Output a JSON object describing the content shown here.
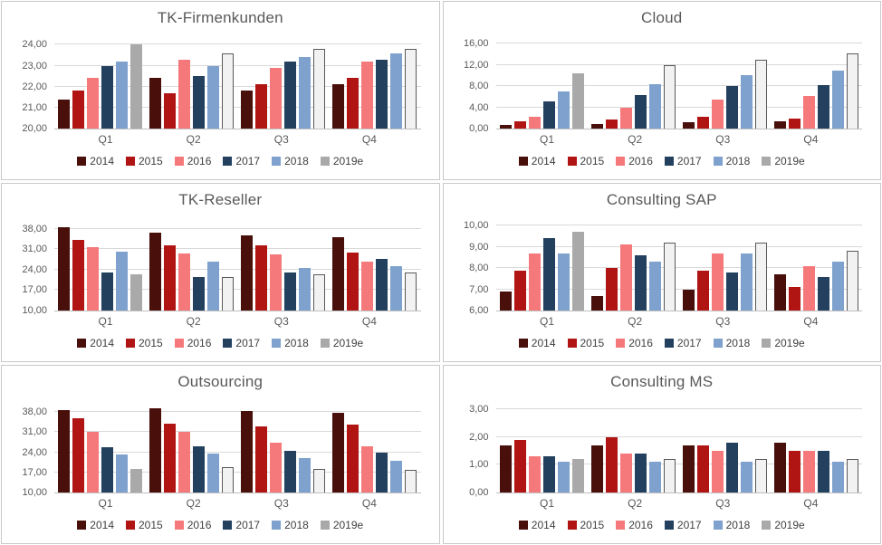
{
  "dashboard": {
    "colors": {
      "background": "#ffffff",
      "panel_border": "#c9c9c9",
      "gridline": "#d9d9d9",
      "axis_line": "#bfbfbf",
      "title_text": "#595959",
      "tick_text": "#595959",
      "legend_text": "#404040"
    },
    "legend": {
      "position": "bottom",
      "entries": [
        {
          "label": "2014",
          "color": "#480f0b"
        },
        {
          "label": "2015",
          "color": "#b01513"
        },
        {
          "label": "2016",
          "color": "#f5797b"
        },
        {
          "label": "2017",
          "color": "#23405f"
        },
        {
          "label": "2018",
          "color": "#7ea1cd"
        },
        {
          "label": "2019e",
          "color": "#a9a9a9",
          "estimate_fill": "#f2f2f2",
          "estimate_border": "#595959",
          "estimate_from_index": 1
        }
      ]
    }
  },
  "chart_data": [
    {
      "type": "bar",
      "title": "TK-Firmenkunden",
      "categories": [
        "Q1",
        "Q2",
        "Q3",
        "Q4"
      ],
      "grid": true,
      "legend_position": "bottom",
      "ylim": [
        20,
        24.45
      ],
      "y_ticks": [
        {
          "v": 20,
          "label": "20,00"
        },
        {
          "v": 21,
          "label": "21,00"
        },
        {
          "v": 22,
          "label": "22,00"
        },
        {
          "v": 23,
          "label": "23,00"
        },
        {
          "v": 24,
          "label": "24,00"
        }
      ],
      "series": [
        {
          "name": "2014",
          "values": [
            21.4,
            22.4,
            21.8,
            22.1
          ]
        },
        {
          "name": "2015",
          "values": [
            21.8,
            21.7,
            22.1,
            22.4
          ]
        },
        {
          "name": "2016",
          "values": [
            22.4,
            23.3,
            22.9,
            23.2
          ]
        },
        {
          "name": "2017",
          "values": [
            23.0,
            22.5,
            23.2,
            23.3
          ]
        },
        {
          "name": "2018",
          "values": [
            23.2,
            23.0,
            23.4,
            23.6
          ]
        },
        {
          "name": "2019e",
          "values": [
            24.0,
            23.6,
            23.8,
            23.8
          ]
        }
      ]
    },
    {
      "type": "bar",
      "title": "Cloud",
      "categories": [
        "Q1",
        "Q2",
        "Q3",
        "Q4"
      ],
      "grid": true,
      "legend_position": "bottom",
      "ylim": [
        0,
        17.6
      ],
      "y_ticks": [
        {
          "v": 0,
          "label": "0,00"
        },
        {
          "v": 4,
          "label": "4,00"
        },
        {
          "v": 8,
          "label": "8,00"
        },
        {
          "v": 12,
          "label": "12,00"
        },
        {
          "v": 16,
          "label": "16,00"
        }
      ],
      "series": [
        {
          "name": "2014",
          "values": [
            0.7,
            0.8,
            1.2,
            1.4
          ]
        },
        {
          "name": "2015",
          "values": [
            1.3,
            1.7,
            2.3,
            1.9
          ]
        },
        {
          "name": "2016",
          "values": [
            2.3,
            4.0,
            5.5,
            6.1
          ]
        },
        {
          "name": "2017",
          "values": [
            5.1,
            6.3,
            8.0,
            8.2
          ]
        },
        {
          "name": "2018",
          "values": [
            7.0,
            8.4,
            10.0,
            10.9
          ]
        },
        {
          "name": "2019e",
          "values": [
            10.5,
            12.0,
            13.0,
            14.1
          ]
        }
      ]
    },
    {
      "type": "bar",
      "title": "TK-Reseller",
      "categories": [
        "Q1",
        "Q2",
        "Q3",
        "Q4"
      ],
      "grid": true,
      "legend_position": "bottom",
      "ylim": [
        10,
        42
      ],
      "y_ticks": [
        {
          "v": 10,
          "label": "10,00"
        },
        {
          "v": 17,
          "label": "17,00"
        },
        {
          "v": 24,
          "label": "24,00"
        },
        {
          "v": 31,
          "label": "31,00"
        },
        {
          "v": 38,
          "label": "38,00"
        }
      ],
      "series": [
        {
          "name": "2014",
          "values": [
            38.5,
            36.8,
            35.9,
            35.1
          ]
        },
        {
          "name": "2015",
          "values": [
            34.3,
            32.3,
            32.4,
            29.8
          ]
        },
        {
          "name": "2016",
          "values": [
            31.8,
            29.5,
            29.3,
            26.9
          ]
        },
        {
          "name": "2017",
          "values": [
            23.1,
            21.4,
            23.1,
            27.8
          ]
        },
        {
          "name": "2018",
          "values": [
            30.1,
            26.9,
            24.5,
            25.2
          ]
        },
        {
          "name": "2019e",
          "values": [
            22.5,
            21.6,
            22.3,
            23.2
          ]
        }
      ]
    },
    {
      "type": "bar",
      "title": "Consulting SAP",
      "categories": [
        "Q1",
        "Q2",
        "Q3",
        "Q4"
      ],
      "grid": true,
      "legend_position": "bottom",
      "ylim": [
        6,
        10.4
      ],
      "y_ticks": [
        {
          "v": 6,
          "label": "6,00"
        },
        {
          "v": 7,
          "label": "7,00"
        },
        {
          "v": 8,
          "label": "8,00"
        },
        {
          "v": 9,
          "label": "9,00"
        },
        {
          "v": 10,
          "label": "10,00"
        }
      ],
      "series": [
        {
          "name": "2014",
          "values": [
            6.9,
            6.7,
            7.0,
            7.7
          ]
        },
        {
          "name": "2015",
          "values": [
            7.9,
            8.0,
            7.9,
            7.1
          ]
        },
        {
          "name": "2016",
          "values": [
            8.7,
            9.1,
            8.7,
            8.1
          ]
        },
        {
          "name": "2017",
          "values": [
            9.4,
            8.6,
            7.8,
            7.6
          ]
        },
        {
          "name": "2018",
          "values": [
            8.7,
            8.3,
            8.7,
            8.3
          ]
        },
        {
          "name": "2019e",
          "values": [
            9.7,
            9.2,
            9.2,
            8.8
          ]
        }
      ]
    },
    {
      "type": "bar",
      "title": "Outsourcing",
      "categories": [
        "Q1",
        "Q2",
        "Q3",
        "Q4"
      ],
      "grid": true,
      "legend_position": "bottom",
      "ylim": [
        10,
        42.5
      ],
      "y_ticks": [
        {
          "v": 10,
          "label": "10,00"
        },
        {
          "v": 17,
          "label": "17,00"
        },
        {
          "v": 24,
          "label": "24,00"
        },
        {
          "v": 31,
          "label": "31,00"
        },
        {
          "v": 38,
          "label": "38,00"
        }
      ],
      "series": [
        {
          "name": "2014",
          "values": [
            38.7,
            39.4,
            38.4,
            37.9
          ]
        },
        {
          "name": "2015",
          "values": [
            35.8,
            34.0,
            33.0,
            33.6
          ]
        },
        {
          "name": "2016",
          "values": [
            31.3,
            31.2,
            27.4,
            26.1
          ]
        },
        {
          "name": "2017",
          "values": [
            25.9,
            26.0,
            24.5,
            24.0
          ]
        },
        {
          "name": "2018",
          "values": [
            23.1,
            23.5,
            22.1,
            20.9
          ]
        },
        {
          "name": "2019e",
          "values": [
            18.3,
            18.7,
            18.2,
            18.0
          ]
        }
      ]
    },
    {
      "type": "bar",
      "title": "Consulting MS",
      "categories": [
        "Q1",
        "Q2",
        "Q3",
        "Q4"
      ],
      "grid": true,
      "legend_position": "bottom",
      "ylim": [
        0,
        3.35
      ],
      "y_ticks": [
        {
          "v": 0,
          "label": "0,00"
        },
        {
          "v": 1,
          "label": "1,00"
        },
        {
          "v": 2,
          "label": "2,00"
        },
        {
          "v": 3,
          "label": "3,00"
        }
      ],
      "series": [
        {
          "name": "2014",
          "values": [
            1.7,
            1.7,
            1.7,
            1.8
          ]
        },
        {
          "name": "2015",
          "values": [
            1.9,
            2.0,
            1.7,
            1.5
          ]
        },
        {
          "name": "2016",
          "values": [
            1.3,
            1.4,
            1.5,
            1.5
          ]
        },
        {
          "name": "2017",
          "values": [
            1.3,
            1.4,
            1.8,
            1.5
          ]
        },
        {
          "name": "2018",
          "values": [
            1.1,
            1.1,
            1.1,
            1.1
          ]
        },
        {
          "name": "2019e",
          "values": [
            1.2,
            1.2,
            1.2,
            1.2
          ]
        }
      ]
    }
  ]
}
